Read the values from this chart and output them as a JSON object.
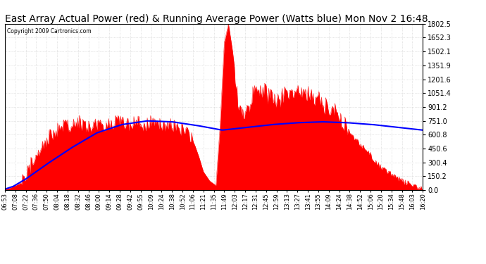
{
  "title": "East Array Actual Power (red) & Running Average Power (Watts blue) Mon Nov 2 16:48",
  "copyright": "Copyright 2009 Cartronics.com",
  "title_fontsize": 10,
  "yticks": [
    0.0,
    150.2,
    300.4,
    450.6,
    600.8,
    751.0,
    901.2,
    1051.4,
    1201.6,
    1351.9,
    1502.1,
    1652.3,
    1802.5
  ],
  "ymax": 1802.5,
  "ymin": 0.0,
  "bg_color": "#ffffff",
  "grid_color": "#cccccc",
  "fill_color": "#ff0000",
  "line_color": "#0000ff",
  "xtick_labels": [
    "06:53",
    "07:08",
    "07:22",
    "07:36",
    "07:50",
    "08:04",
    "08:18",
    "08:32",
    "08:46",
    "09:00",
    "09:14",
    "09:28",
    "09:42",
    "09:55",
    "10:09",
    "10:24",
    "10:38",
    "10:52",
    "11:06",
    "11:21",
    "11:35",
    "11:49",
    "12:03",
    "12:17",
    "12:31",
    "12:45",
    "12:59",
    "13:13",
    "13:27",
    "13:41",
    "13:55",
    "14:09",
    "14:24",
    "14:38",
    "14:52",
    "15:06",
    "15:20",
    "15:34",
    "15:48",
    "16:03",
    "16:20"
  ],
  "red_keypoints_x": [
    0,
    0.01,
    0.04,
    0.07,
    0.1,
    0.13,
    0.155,
    0.175,
    0.2,
    0.225,
    0.25,
    0.27,
    0.29,
    0.315,
    0.335,
    0.355,
    0.375,
    0.395,
    0.41,
    0.43,
    0.445,
    0.455,
    0.465,
    0.475,
    0.49,
    0.505,
    0.515,
    0.525,
    0.535,
    0.545,
    0.56,
    0.575,
    0.595,
    0.615,
    0.635,
    0.655,
    0.67,
    0.69,
    0.71,
    0.73,
    0.75,
    0.77,
    0.79,
    0.81,
    0.83,
    0.87,
    0.9,
    0.93,
    0.96,
    0.99,
    1.0
  ],
  "red_keypoints_y": [
    10,
    20,
    80,
    350,
    550,
    680,
    700,
    740,
    690,
    720,
    710,
    750,
    720,
    730,
    710,
    740,
    720,
    710,
    680,
    640,
    580,
    480,
    350,
    200,
    100,
    50,
    700,
    1600,
    1802,
    1500,
    900,
    800,
    1050,
    1100,
    1000,
    950,
    1050,
    1000,
    1100,
    1050,
    980,
    900,
    850,
    750,
    600,
    400,
    250,
    150,
    80,
    30,
    10
  ],
  "blue_keypoints_x": [
    0,
    0.02,
    0.05,
    0.1,
    0.16,
    0.22,
    0.28,
    0.34,
    0.4,
    0.46,
    0.52,
    0.58,
    0.64,
    0.7,
    0.76,
    0.82,
    0.88,
    0.94,
    1.0
  ],
  "blue_keypoints_y": [
    10,
    40,
    120,
    280,
    460,
    620,
    710,
    750,
    740,
    700,
    650,
    680,
    710,
    730,
    740,
    730,
    710,
    680,
    650
  ]
}
